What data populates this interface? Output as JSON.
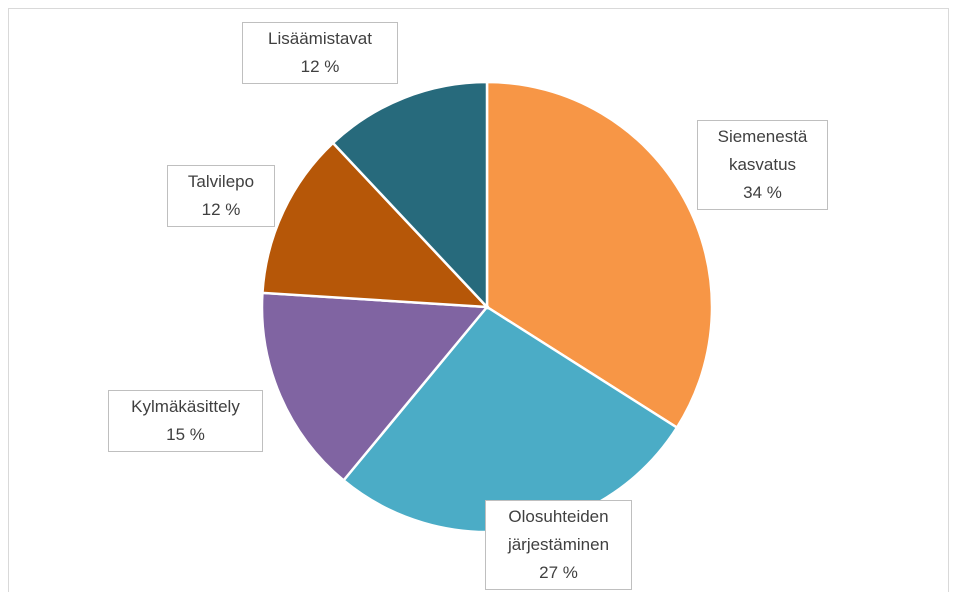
{
  "chart_data": {
    "type": "pie",
    "categories": [
      "Siemenestä kasvatus",
      "Olosuhteiden järjestäminen",
      "Kylmäkäsittely",
      "Talvilepo",
      "Lisäämistavat"
    ],
    "values": [
      34,
      27,
      15,
      12,
      12
    ],
    "value_labels": [
      "34 %",
      "27 %",
      "15 %",
      "12 %",
      "12 %"
    ],
    "colors": [
      "#F79646",
      "#4BACC6",
      "#8064A2",
      "#B65708",
      "#276A7C"
    ]
  }
}
